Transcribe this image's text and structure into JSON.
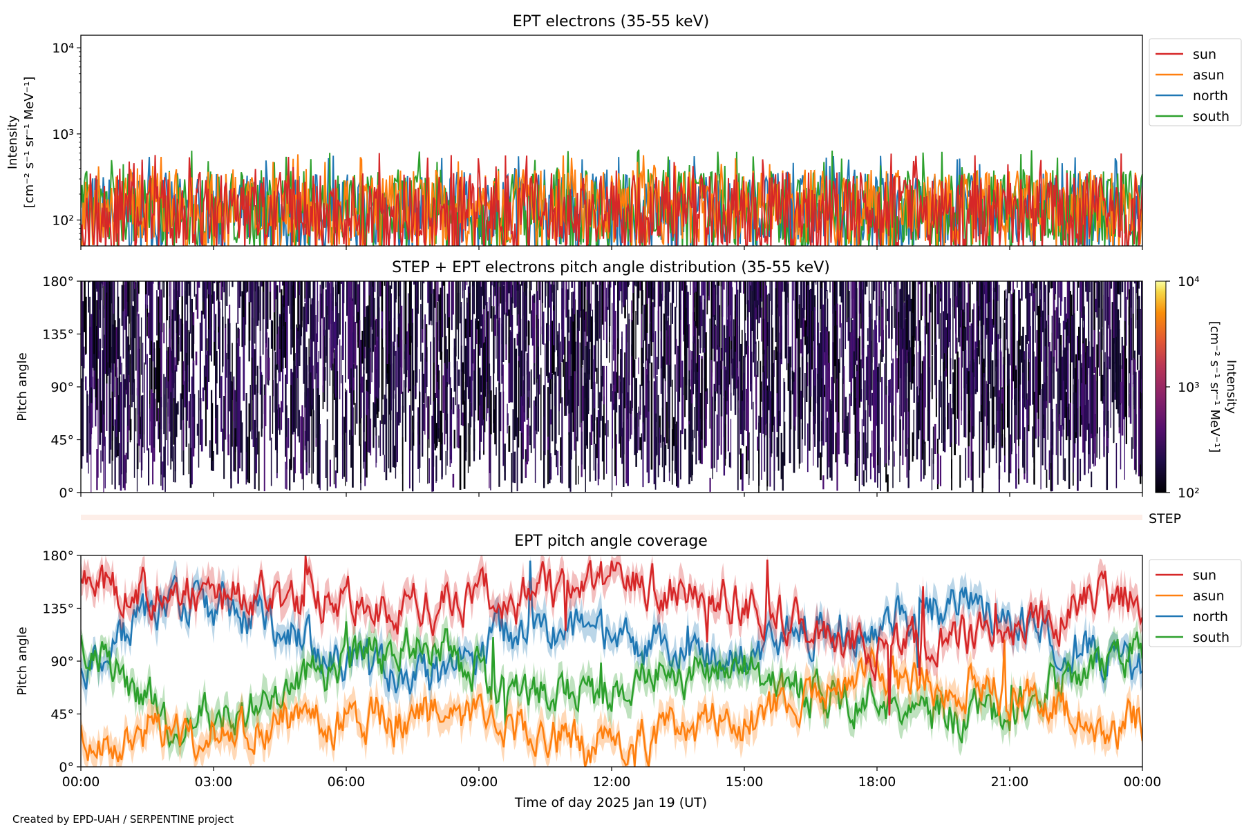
{
  "footer": "Created by EPD-UAH / SERPENTINE project",
  "colors": {
    "sun": "#d62728",
    "asun": "#ff7f0e",
    "north": "#1f77b4",
    "south": "#2ca02c"
  },
  "chart_data": [
    {
      "type": "line",
      "title": "EPT electrons (35-55 keV)",
      "ylabel": "Intensity",
      "ylabel_units": "[cm⁻² s⁻¹ sr⁻¹ MeV⁻¹]",
      "yscale": "log",
      "ylim": [
        50,
        14000
      ],
      "yticks": [
        {
          "value": 100,
          "label": "10²"
        },
        {
          "value": 1000,
          "label": "10³"
        },
        {
          "value": 10000,
          "label": "10⁴"
        }
      ],
      "xlim": [
        "2025-01-19 00:00",
        "2025-01-20 00:00"
      ],
      "legend_position": "outside-right",
      "series": [
        {
          "name": "sun",
          "color": "#d62728",
          "typical": 120,
          "max": 600
        },
        {
          "name": "asun",
          "color": "#ff7f0e",
          "typical": 130,
          "max": 580
        },
        {
          "name": "north",
          "color": "#1f77b4",
          "typical": 120,
          "max": 560
        },
        {
          "name": "south",
          "color": "#2ca02c",
          "typical": 130,
          "max": 660
        }
      ]
    },
    {
      "type": "heatmap",
      "title": "STEP + EPT electrons pitch angle distribution (35-55 keV)",
      "ylabel": "Pitch angle",
      "ylim": [
        0,
        180
      ],
      "yticks": [
        "0°",
        "45°",
        "90°",
        "135°",
        "180°"
      ],
      "colorbar": {
        "label": "Intensity",
        "units": "[cm⁻² s⁻¹ sr⁻¹ MeV⁻¹]",
        "scale": "log",
        "range": [
          100,
          10000
        ],
        "ticks": [
          "10²",
          "10³",
          "10⁴"
        ],
        "colormap": "inferno"
      },
      "gap_regions_deg": [
        [
          135,
          160
        ],
        [
          70,
          100
        ],
        [
          25,
          50
        ]
      ]
    },
    {
      "type": "bar",
      "label": "STEP"
    },
    {
      "type": "line",
      "title": "EPT pitch angle coverage",
      "ylabel": "Pitch angle",
      "ylim": [
        0,
        180
      ],
      "yticks": [
        "0°",
        "45°",
        "90°",
        "135°",
        "180°"
      ],
      "xlabel": "Time of day 2025 Jan 19 (UT)",
      "xticks": [
        "00:00",
        "03:00",
        "06:00",
        "09:00",
        "12:00",
        "15:00",
        "18:00",
        "21:00",
        "00:00"
      ],
      "legend_position": "outside-right",
      "series": [
        {
          "name": "sun",
          "color": "#d62728",
          "x_hours": [
            0,
            2,
            4,
            6,
            8,
            10,
            12,
            14,
            15,
            16,
            17,
            18,
            19,
            20,
            21,
            22,
            23,
            24
          ],
          "values": [
            150,
            150,
            145,
            140,
            135,
            150,
            160,
            145,
            140,
            125,
            110,
            100,
            105,
            110,
            120,
            125,
            150,
            140
          ]
        },
        {
          "name": "asun",
          "color": "#ff7f0e",
          "x_hours": [
            0,
            2,
            4,
            6,
            8,
            10,
            12,
            14,
            15,
            16,
            17,
            18,
            19,
            20,
            21,
            22,
            23,
            24
          ],
          "values": [
            30,
            30,
            35,
            40,
            45,
            30,
            20,
            35,
            40,
            55,
            70,
            80,
            75,
            70,
            60,
            55,
            30,
            40
          ]
        },
        {
          "name": "north",
          "color": "#1f77b4",
          "x_hours": [
            0,
            2,
            4,
            6,
            8,
            10,
            12,
            14,
            15,
            16,
            17,
            18,
            19,
            20,
            21,
            22,
            23,
            24
          ],
          "values": [
            80,
            140,
            130,
            90,
            75,
            120,
            110,
            100,
            95,
            115,
            120,
            125,
            130,
            140,
            130,
            110,
            95,
            85
          ]
        },
        {
          "name": "south",
          "color": "#2ca02c",
          "x_hours": [
            0,
            2,
            4,
            6,
            8,
            10,
            12,
            14,
            15,
            16,
            17,
            18,
            19,
            20,
            21,
            22,
            23,
            24
          ],
          "values": [
            100,
            40,
            50,
            90,
            105,
            60,
            70,
            80,
            85,
            65,
            60,
            55,
            50,
            40,
            50,
            70,
            85,
            95
          ]
        }
      ]
    }
  ]
}
